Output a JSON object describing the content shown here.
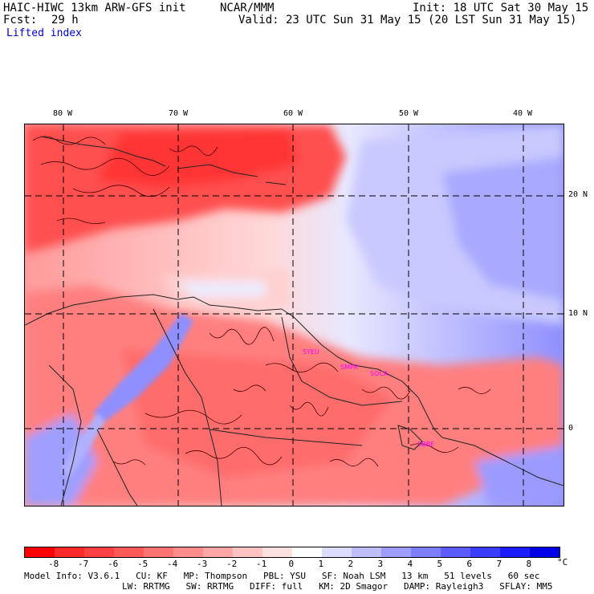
{
  "header": {
    "model_title": "HAIC-HIWC 13km ARW-GFS init",
    "org": "NCAR/MMM",
    "init": "Init: 18 UTC Sat 30 May 15",
    "fcst_label": "Fcst:",
    "fcst_value": "29 h",
    "valid": "Valid: 23 UTC Sun 31 May 15 (20 LST Sun 31 May 15)",
    "field": "Lifted index"
  },
  "map": {
    "lon_labels": [
      "80 W",
      "70 W",
      "60 W",
      "50 W",
      "40 W"
    ],
    "lat_labels": [
      "20 N",
      "10 N",
      "0"
    ],
    "station_labels": [
      "SYEU",
      "SMPR",
      "SOCA",
      "SBBE"
    ],
    "station_color": "#ff00ff"
  },
  "colorbar": {
    "labels": [
      "-8",
      "-7",
      "-6",
      "-5",
      "-4",
      "-3",
      "-2",
      "-1",
      "0",
      "1",
      "2",
      "3",
      "4",
      "5",
      "6",
      "7",
      "8"
    ],
    "unit": "°C",
    "colors": [
      "#ff0000",
      "#ff2a2a",
      "#ff4040",
      "#ff5a5a",
      "#ff7373",
      "#ff8d8d",
      "#ffa8a8",
      "#ffc3c3",
      "#ffe0e0",
      "#ffffff",
      "#dcdcff",
      "#bdbdff",
      "#9d9dff",
      "#7d7dff",
      "#5c5cff",
      "#3c3cff",
      "#1c1cff",
      "#0000e6"
    ]
  },
  "model_info": {
    "line1": [
      {
        "key": "Model Info:",
        "val": "V3.6.1"
      },
      {
        "key": "CU:",
        "val": "KF"
      },
      {
        "key": "MP:",
        "val": "Thompson"
      },
      {
        "key": "PBL:",
        "val": "YSU"
      },
      {
        "key": "SF:",
        "val": "Noah LSM"
      },
      {
        "key": "",
        "val": "13 km"
      },
      {
        "key": "",
        "val": "51 levels"
      },
      {
        "key": "",
        "val": "60 sec"
      }
    ],
    "line2": [
      {
        "key": "LW:",
        "val": "RRTMG"
      },
      {
        "key": "SW:",
        "val": "RRTMG"
      },
      {
        "key": "DIFF:",
        "val": "full"
      },
      {
        "key": "KM:",
        "val": "2D Smagor"
      },
      {
        "key": "DAMP:",
        "val": "Rayleigh3"
      },
      {
        "key": "SFLAY:",
        "val": "MM5"
      }
    ]
  }
}
